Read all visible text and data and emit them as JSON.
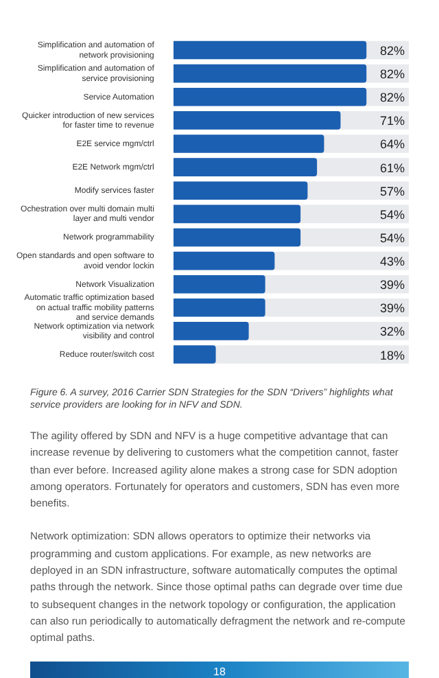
{
  "chart_data": {
    "type": "bar",
    "orientation": "horizontal",
    "categories": [
      "Simplification and automation of network provisioning",
      "Simplification and automation of service provisioning",
      "Service Automation",
      "Quicker introduction of new services for faster time to revenue",
      "E2E service mgm/ctrl",
      "E2E Network mgm/ctrl",
      "Modify services faster",
      "Ochestration over multi domain multi layer and multi vendor",
      "Network programmability",
      "Open standards and open software to avoid vendor lockin",
      "Network Visualization",
      "Automatic traffic optimization based on actual traffic mobility patterns and service demands",
      "Network optimization via network visibility and control",
      "Reduce router/switch cost"
    ],
    "values": [
      82,
      82,
      82,
      71,
      64,
      61,
      57,
      54,
      54,
      43,
      39,
      39,
      32,
      18
    ],
    "value_labels": [
      "82%",
      "82%",
      "82%",
      "71%",
      "64%",
      "61%",
      "57%",
      "54%",
      "54%",
      "43%",
      "39%",
      "39%",
      "32%",
      "18%"
    ],
    "color": "#1b5fb1",
    "xlim": [
      0,
      100
    ],
    "tick_labels": "y",
    "grid": false,
    "legend": false,
    "annotations": [
      "Figure 6. A survey, 2016 Carrier SDN Strategies for the SDN “Drivers” highlights what service providers are looking for in NFV and SDN.",
      "The agility offered by SDN and NFV is a huge competitive advantage that can increase revenue by delivering to customers what the competition cannot, faster than ever before. Increased agility alone makes a strong case for SDN adoption among operators. Fortunately for operators and customers, SDN has even more benefits.",
      "Network optimization: SDN allows operators to optimize their networks via programming and custom applications. For example, as new networks are deployed in an SDN infrastructure, software automatically computes the optimal paths through the network. Since those optimal paths can degrade over time due to subsequent changes in the network topology or configuration, the application can also run periodically to automatically defragment the network and re-compute optimal paths.",
      "18"
    ]
  }
}
